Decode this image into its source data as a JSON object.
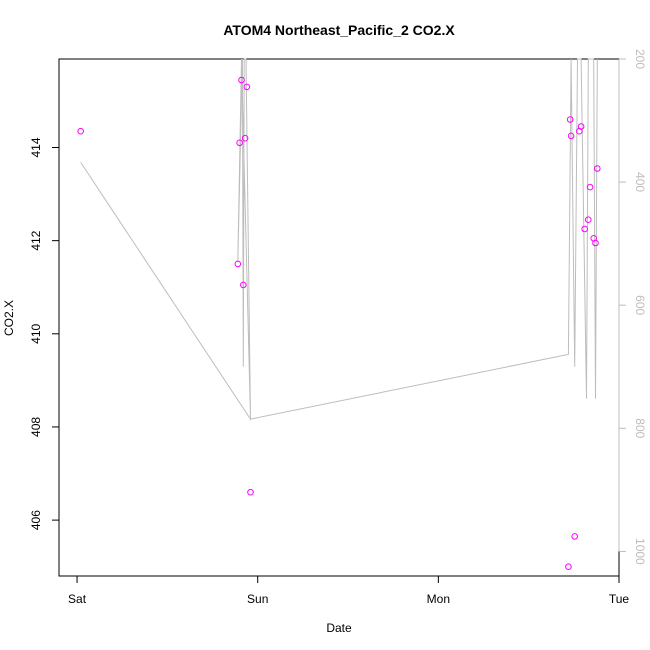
{
  "chart_data": {
    "type": "scatter",
    "title": "ATOM4 Northeast_Pacific_2 CO2.X",
    "xlabel": "Date",
    "ylabel": "CO2.X",
    "x_ticks": [
      {
        "label": "Sat",
        "value": 0
      },
      {
        "label": "Sun",
        "value": 1
      },
      {
        "label": "Mon",
        "value": 2
      },
      {
        "label": "Tue",
        "value": 3
      }
    ],
    "y_ticks": [
      406,
      408,
      410,
      412,
      414
    ],
    "ylim": [
      404.8,
      415.9
    ],
    "xlim": [
      -0.1,
      3.0
    ],
    "y2_ticks": [
      200,
      400,
      600,
      800,
      1000
    ],
    "y2lim": [
      1040,
      200
    ],
    "y2_reversed": true,
    "series": [
      {
        "color": "#ff00ff",
        "marker": "open-circle",
        "points": [
          {
            "x": 0.02,
            "y": 414.35
          },
          {
            "x": 0.89,
            "y": 411.5
          },
          {
            "x": 0.9,
            "y": 414.1
          },
          {
            "x": 0.91,
            "y": 415.45
          },
          {
            "x": 0.92,
            "y": 411.05
          },
          {
            "x": 0.93,
            "y": 414.2
          },
          {
            "x": 0.94,
            "y": 415.3
          },
          {
            "x": 0.96,
            "y": 406.6
          },
          {
            "x": 2.72,
            "y": 405.0
          },
          {
            "x": 2.73,
            "y": 414.6
          },
          {
            "x": 2.735,
            "y": 414.25
          },
          {
            "x": 2.755,
            "y": 405.65
          },
          {
            "x": 2.78,
            "y": 414.35
          },
          {
            "x": 2.79,
            "y": 414.45
          },
          {
            "x": 2.81,
            "y": 412.25
          },
          {
            "x": 2.83,
            "y": 412.45
          },
          {
            "x": 2.84,
            "y": 413.15
          },
          {
            "x": 2.86,
            "y": 412.05
          },
          {
            "x": 2.87,
            "y": 411.95
          },
          {
            "x": 2.88,
            "y": 413.55
          }
        ]
      }
    ],
    "depth_line": {
      "color": "#bdbdbd",
      "points": [
        {
          "x": 0.02,
          "y2": 368
        },
        {
          "x": 0.96,
          "y2": 785
        },
        {
          "x": 0.91,
          "y2": 200
        },
        {
          "x": 0.89,
          "y2": 530
        },
        {
          "x": 0.915,
          "y2": 200
        },
        {
          "x": 0.92,
          "y2": 700
        },
        {
          "x": 0.925,
          "y2": 200
        },
        {
          "x": 0.935,
          "y2": 200
        },
        {
          "x": 0.96,
          "y2": 785
        },
        {
          "x": 2.72,
          "y2": 680
        },
        {
          "x": 2.735,
          "y2": 200
        },
        {
          "x": 2.755,
          "y2": 700
        },
        {
          "x": 2.77,
          "y2": 200
        },
        {
          "x": 2.79,
          "y2": 200
        },
        {
          "x": 2.82,
          "y2": 752
        },
        {
          "x": 2.83,
          "y2": 200
        },
        {
          "x": 2.86,
          "y2": 200
        },
        {
          "x": 2.87,
          "y2": 752
        },
        {
          "x": 2.88,
          "y2": 200
        }
      ]
    }
  }
}
